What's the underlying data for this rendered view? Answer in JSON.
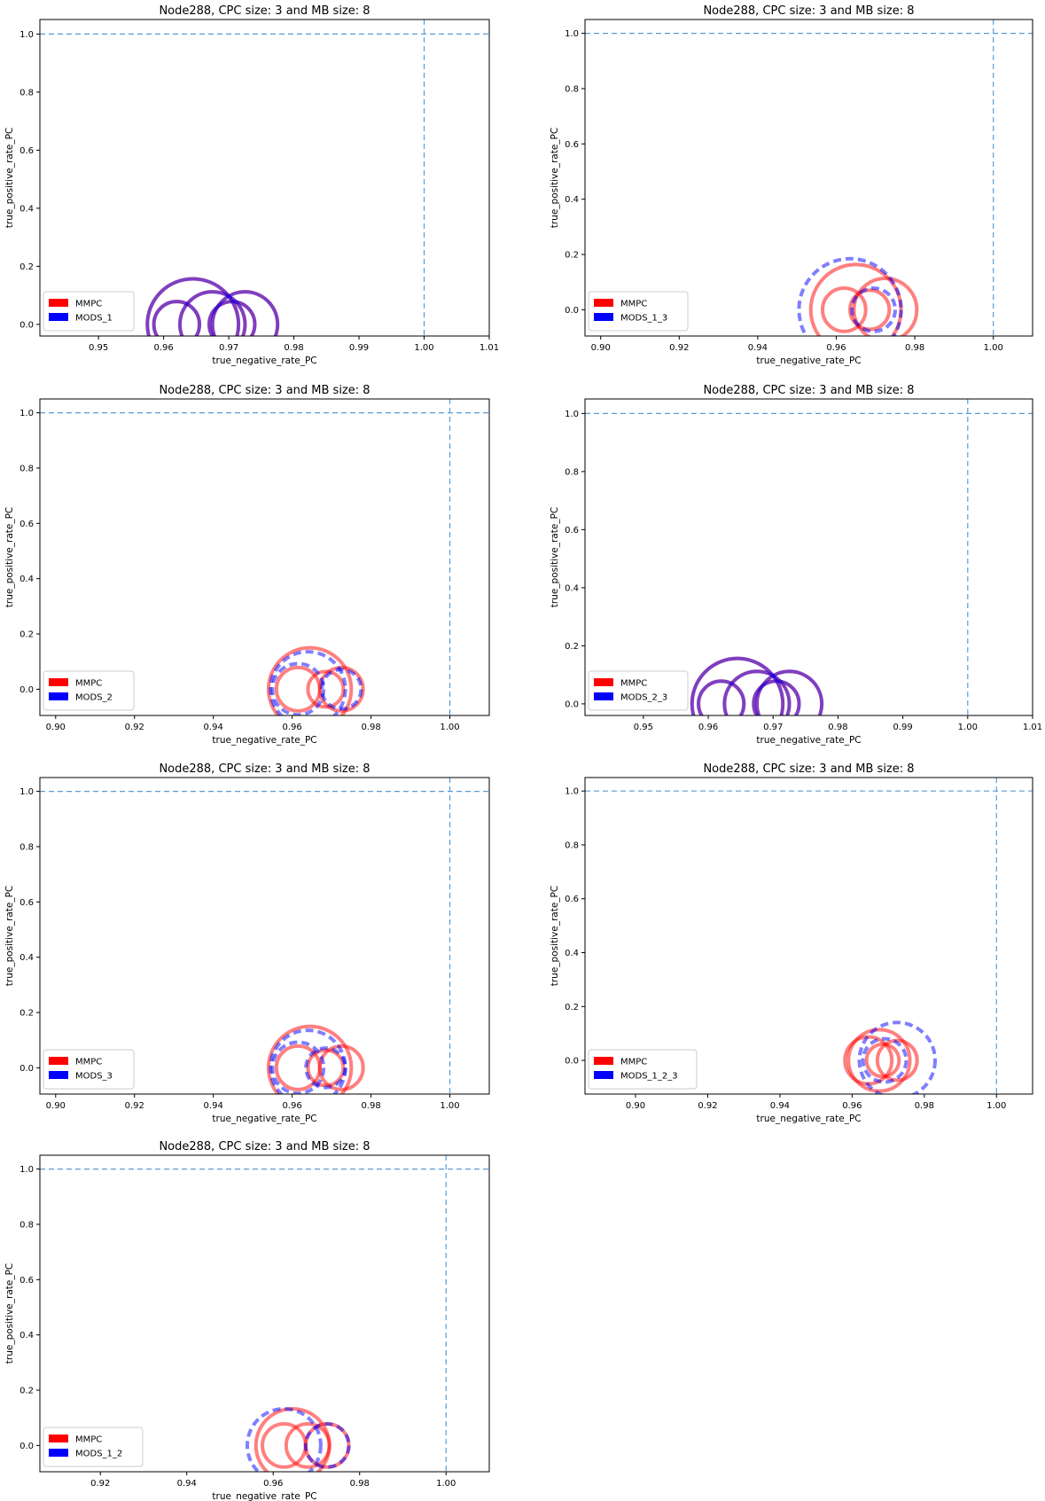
{
  "chart_data": [
    {
      "type": "scatter",
      "title": "Node288, CPC size: 3 and MB size: 8",
      "xlabel": "true_negative_rate_PC",
      "ylabel": "true_positive_rate_PC",
      "xlim": [
        0.941,
        1.01
      ],
      "ylim": [
        -0.04,
        1.05
      ],
      "xticks": [
        "0.95",
        "0.96",
        "0.97",
        "0.98",
        "0.99",
        "1.00",
        "1.01"
      ],
      "yticks": [
        "0.0",
        "0.2",
        "0.4",
        "0.6",
        "0.8",
        "1.0"
      ],
      "ref_x": 1.0,
      "ref_y": 1.0,
      "legend": [
        "MMPC",
        "MODS_1"
      ],
      "legend_position": "lower left",
      "grid": false,
      "series": [
        {
          "name": "MMPC",
          "color": "#ff0000",
          "dashed": false,
          "points": [
            {
              "x": 0.962,
              "y": 0.0,
              "r": 0.0035
            },
            {
              "x": 0.9645,
              "y": 0.0,
              "r": 0.007
            },
            {
              "x": 0.9675,
              "y": 0.0,
              "r": 0.005
            },
            {
              "x": 0.9705,
              "y": 0.0,
              "r": 0.0035
            },
            {
              "x": 0.9725,
              "y": 0.0,
              "r": 0.005
            }
          ]
        },
        {
          "name": "MODS_1",
          "color": "#0000ff",
          "dashed": false,
          "points": [
            {
              "x": 0.962,
              "y": 0.0,
              "r": 0.0035
            },
            {
              "x": 0.9645,
              "y": 0.0,
              "r": 0.007
            },
            {
              "x": 0.9675,
              "y": 0.0,
              "r": 0.005
            },
            {
              "x": 0.9705,
              "y": 0.0,
              "r": 0.0035
            },
            {
              "x": 0.9725,
              "y": 0.0,
              "r": 0.005
            }
          ]
        }
      ]
    },
    {
      "type": "scatter",
      "title": "Node288, CPC size: 3 and MB size: 8",
      "xlabel": "true_negative_rate_PC",
      "ylabel": "true_positive_rate_PC",
      "xlim": [
        0.896,
        1.01
      ],
      "ylim": [
        -0.095,
        1.05
      ],
      "xticks": [
        "0.90",
        "0.92",
        "0.94",
        "0.96",
        "0.98",
        "1.00"
      ],
      "yticks": [
        "0.0",
        "0.2",
        "0.4",
        "0.6",
        "0.8",
        "1.0"
      ],
      "ref_x": 1.0,
      "ref_y": 1.0,
      "legend": [
        "MMPC",
        "MODS_1_3"
      ],
      "legend_position": "lower left",
      "grid": false,
      "series": [
        {
          "name": "MMPC",
          "color": "#ff0000",
          "dashed": false,
          "points": [
            {
              "x": 0.962,
              "y": 0.0,
              "r": 0.0055
            },
            {
              "x": 0.965,
              "y": 0.0,
              "r": 0.0115
            },
            {
              "x": 0.9685,
              "y": 0.0,
              "r": 0.005
            },
            {
              "x": 0.9725,
              "y": 0.0,
              "r": 0.008
            }
          ]
        },
        {
          "name": "MODS_1_3",
          "color": "#0000ff",
          "dashed": true,
          "points": [
            {
              "x": 0.9635,
              "y": 0.0,
              "r": 0.013
            },
            {
              "x": 0.9695,
              "y": 0.0,
              "r": 0.0055
            }
          ]
        }
      ]
    },
    {
      "type": "scatter",
      "title": "Node288, CPC size: 3 and MB size: 8",
      "xlabel": "true_negative_rate_PC",
      "ylabel": "true_positive_rate_PC",
      "xlim": [
        0.896,
        1.01
      ],
      "ylim": [
        -0.095,
        1.05
      ],
      "xticks": [
        "0.90",
        "0.92",
        "0.94",
        "0.96",
        "0.98",
        "1.00"
      ],
      "yticks": [
        "0.0",
        "0.2",
        "0.4",
        "0.6",
        "0.8",
        "1.0"
      ],
      "ref_x": 1.0,
      "ref_y": 1.0,
      "legend": [
        "MMPC",
        "MODS_2"
      ],
      "legend_position": "lower left",
      "grid": false,
      "series": [
        {
          "name": "MMPC",
          "color": "#ff0000",
          "dashed": false,
          "points": [
            {
              "x": 0.9615,
              "y": 0.0,
              "r": 0.0055
            },
            {
              "x": 0.9645,
              "y": 0.0,
              "r": 0.0105
            },
            {
              "x": 0.9685,
              "y": 0.0,
              "r": 0.0045
            },
            {
              "x": 0.9725,
              "y": 0.0,
              "r": 0.0055
            }
          ]
        },
        {
          "name": "MODS_2",
          "color": "#0000ff",
          "dashed": true,
          "points": [
            {
              "x": 0.9615,
              "y": 0.0,
              "r": 0.0065
            },
            {
              "x": 0.964,
              "y": 0.0,
              "r": 0.0095
            },
            {
              "x": 0.9725,
              "y": 0.0,
              "r": 0.005
            }
          ]
        }
      ]
    },
    {
      "type": "scatter",
      "title": "Node288, CPC size: 3 and MB size: 8",
      "xlabel": "true_negative_rate_PC",
      "ylabel": "true_positive_rate_PC",
      "xlim": [
        0.941,
        1.01
      ],
      "ylim": [
        -0.04,
        1.05
      ],
      "xticks": [
        "0.95",
        "0.96",
        "0.97",
        "0.98",
        "0.99",
        "1.00",
        "1.01"
      ],
      "yticks": [
        "0.0",
        "0.2",
        "0.4",
        "0.6",
        "0.8",
        "1.0"
      ],
      "ref_x": 1.0,
      "ref_y": 1.0,
      "legend": [
        "MMPC",
        "MODS_2_3"
      ],
      "legend_position": "lower left",
      "grid": false,
      "series": [
        {
          "name": "MMPC",
          "color": "#ff0000",
          "dashed": false,
          "points": [
            {
              "x": 0.962,
              "y": 0.0,
              "r": 0.0035
            },
            {
              "x": 0.9645,
              "y": 0.0,
              "r": 0.007
            },
            {
              "x": 0.9675,
              "y": 0.0,
              "r": 0.005
            },
            {
              "x": 0.9705,
              "y": 0.0,
              "r": 0.0035
            },
            {
              "x": 0.9725,
              "y": 0.0,
              "r": 0.005
            }
          ]
        },
        {
          "name": "MODS_2_3",
          "color": "#0000ff",
          "dashed": false,
          "points": [
            {
              "x": 0.962,
              "y": 0.0,
              "r": 0.0035
            },
            {
              "x": 0.9645,
              "y": 0.0,
              "r": 0.007
            },
            {
              "x": 0.9675,
              "y": 0.0,
              "r": 0.005
            },
            {
              "x": 0.9705,
              "y": 0.0,
              "r": 0.0035
            },
            {
              "x": 0.9725,
              "y": 0.0,
              "r": 0.005
            }
          ]
        }
      ]
    },
    {
      "type": "scatter",
      "title": "Node288, CPC size: 3 and MB size: 8",
      "xlabel": "true_negative_rate_PC",
      "ylabel": "true_positive_rate_PC",
      "xlim": [
        0.896,
        1.01
      ],
      "ylim": [
        -0.095,
        1.05
      ],
      "xticks": [
        "0.90",
        "0.92",
        "0.94",
        "0.96",
        "0.98",
        "1.00"
      ],
      "yticks": [
        "0.0",
        "0.2",
        "0.4",
        "0.6",
        "0.8",
        "1.0"
      ],
      "ref_x": 1.0,
      "ref_y": 1.0,
      "legend": [
        "MMPC",
        "MODS_3"
      ],
      "legend_position": "lower left",
      "grid": false,
      "series": [
        {
          "name": "MMPC",
          "color": "#ff0000",
          "dashed": false,
          "points": [
            {
              "x": 0.9615,
              "y": 0.0,
              "r": 0.0055
            },
            {
              "x": 0.9645,
              "y": 0.0,
              "r": 0.0105
            },
            {
              "x": 0.9685,
              "y": 0.0,
              "r": 0.0045
            },
            {
              "x": 0.9725,
              "y": 0.0,
              "r": 0.0055
            }
          ]
        },
        {
          "name": "MODS_3",
          "color": "#0000ff",
          "dashed": true,
          "points": [
            {
              "x": 0.9615,
              "y": 0.0,
              "r": 0.0065
            },
            {
              "x": 0.964,
              "y": 0.0,
              "r": 0.0095
            },
            {
              "x": 0.9685,
              "y": 0.0,
              "r": 0.005
            }
          ]
        }
      ]
    },
    {
      "type": "scatter",
      "title": "Node288, CPC size: 3 and MB size: 8",
      "xlabel": "true_negative_rate_PC",
      "ylabel": "true_positive_rate_PC",
      "xlim": [
        0.886,
        1.01
      ],
      "ylim": [
        -0.125,
        1.05
      ],
      "xticks": [
        "0.90",
        "0.92",
        "0.94",
        "0.96",
        "0.98",
        "1.00"
      ],
      "yticks": [
        "0.0",
        "0.2",
        "0.4",
        "0.6",
        "0.8",
        "1.0"
      ],
      "ref_x": 1.0,
      "ref_y": 1.0,
      "legend": [
        "MMPC",
        "MODS_1_2_3"
      ],
      "legend_position": "lower left",
      "grid": false,
      "series": [
        {
          "name": "MMPC",
          "color": "#ff0000",
          "dashed": false,
          "points": [
            {
              "x": 0.9645,
              "y": 0.0,
              "r": 0.0065
            },
            {
              "x": 0.9675,
              "y": 0.0,
              "r": 0.0085
            },
            {
              "x": 0.9685,
              "y": 0.0,
              "r": 0.0045
            },
            {
              "x": 0.9725,
              "y": 0.0,
              "r": 0.0055
            }
          ]
        },
        {
          "name": "MODS_1_2_3",
          "color": "#0000ff",
          "dashed": true,
          "points": [
            {
              "x": 0.969,
              "y": 0.0,
              "r": 0.006
            },
            {
              "x": 0.9725,
              "y": 0.0,
              "r": 0.0105
            }
          ]
        }
      ]
    },
    {
      "type": "scatter",
      "title": "Node288, CPC size: 3 and MB size: 8",
      "xlabel": "true_negative_rate_PC",
      "ylabel": "true_positive_rate_PC",
      "xlim": [
        0.906,
        1.01
      ],
      "ylim": [
        -0.095,
        1.05
      ],
      "xticks": [
        "0.92",
        "0.94",
        "0.96",
        "0.98",
        "1.00"
      ],
      "yticks": [
        "0.0",
        "0.2",
        "0.4",
        "0.6",
        "0.8",
        "1.0"
      ],
      "ref_x": 1.0,
      "ref_y": 1.0,
      "legend": [
        "MMPC",
        "MODS_1_2"
      ],
      "legend_position": "lower left",
      "grid": false,
      "series": [
        {
          "name": "MMPC",
          "color": "#ff0000",
          "dashed": false,
          "points": [
            {
              "x": 0.9625,
              "y": 0.0,
              "r": 0.005
            },
            {
              "x": 0.9645,
              "y": 0.0,
              "r": 0.0085
            },
            {
              "x": 0.968,
              "y": 0.0,
              "r": 0.005
            },
            {
              "x": 0.9725,
              "y": 0.0,
              "r": 0.005
            }
          ]
        },
        {
          "name": "MODS_1_2",
          "color": "#0000ff",
          "dashed": true,
          "points": [
            {
              "x": 0.9625,
              "y": 0.0,
              "r": 0.0085
            },
            {
              "x": 0.9725,
              "y": 0.0,
              "r": 0.005
            }
          ]
        }
      ]
    }
  ]
}
